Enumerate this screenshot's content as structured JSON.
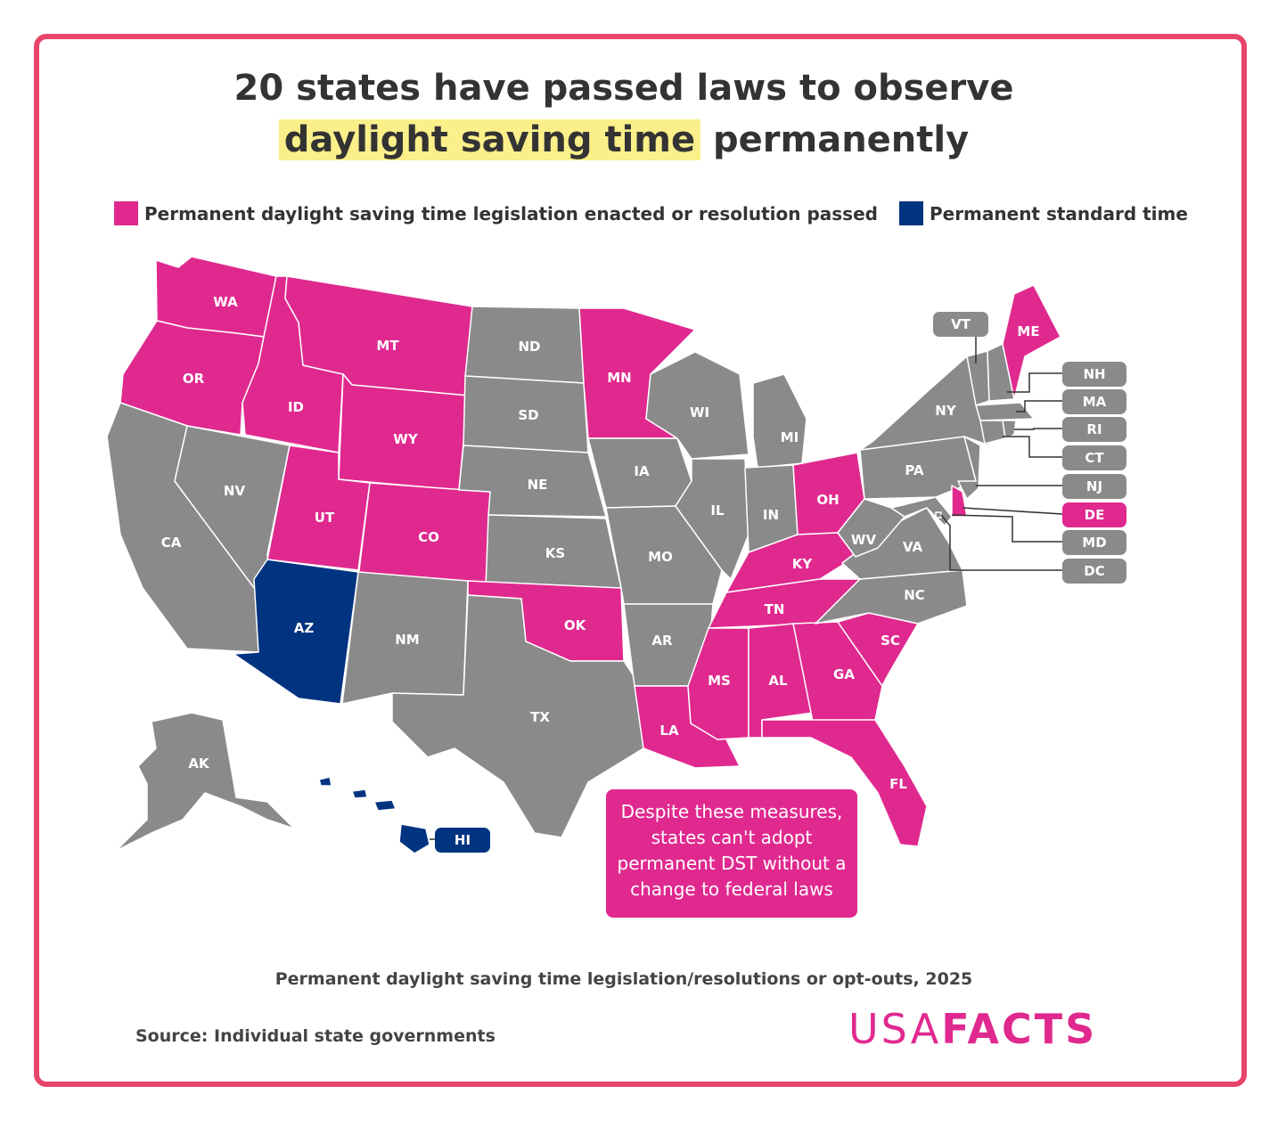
{
  "title": {
    "line1": "20 states have passed laws to observe",
    "highlight": "daylight saving time",
    "rest": " permanently"
  },
  "legend": [
    {
      "label": "Permanent daylight saving time legislation enacted or resolution passed",
      "color": "#e0298f"
    },
    {
      "label": "Permanent standard time",
      "color": "#003380"
    }
  ],
  "colors": {
    "dst": "#e0298f",
    "standard": "#003380",
    "none": "#8a8a8a",
    "border": "#e8456a"
  },
  "states": {
    "WA": "dst",
    "OR": "dst",
    "ID": "dst",
    "MT": "dst",
    "WY": "dst",
    "UT": "dst",
    "CO": "dst",
    "MN": "dst",
    "OK": "dst",
    "LA": "dst",
    "MS": "dst",
    "AL": "dst",
    "GA": "dst",
    "FL": "dst",
    "SC": "dst",
    "TN": "dst",
    "KY": "dst",
    "OH": "dst",
    "DE": "dst",
    "ME": "dst",
    "AZ": "standard",
    "HI": "standard",
    "CA": "none",
    "NV": "none",
    "NM": "none",
    "TX": "none",
    "ND": "none",
    "SD": "none",
    "NE": "none",
    "KS": "none",
    "IA": "none",
    "MO": "none",
    "AR": "none",
    "WI": "none",
    "IL": "none",
    "MI": "none",
    "IN": "none",
    "WV": "none",
    "VA": "none",
    "NC": "none",
    "PA": "none",
    "NY": "none",
    "VT": "none",
    "NH": "none",
    "MA": "none",
    "RI": "none",
    "CT": "none",
    "NJ": "none",
    "MD": "none",
    "DC": "none",
    "AK": "none"
  },
  "callouts": [
    "VT",
    "NH",
    "MA",
    "RI",
    "CT",
    "NJ",
    "DE",
    "MD",
    "DC",
    "HI"
  ],
  "note": "Despite these measures, states can't adopt permanent DST without a change to federal laws",
  "subtitle": "Permanent daylight saving time legislation/resolutions or opt-outs, 2025",
  "source": "Source: Individual state governments",
  "logo": {
    "light": "USA",
    "bold": "FACTS"
  }
}
